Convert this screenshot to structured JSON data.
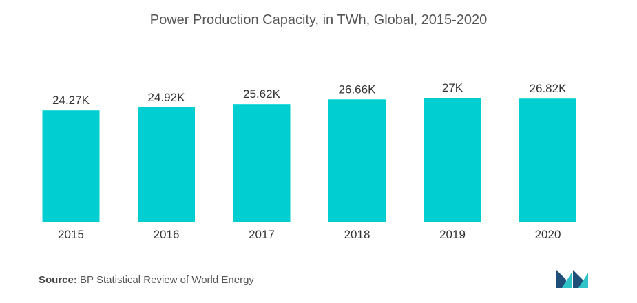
{
  "chart_data": {
    "type": "bar",
    "title": "Power Production Capacity, in TWh, Global, 2015-2020",
    "categories": [
      "2015",
      "2016",
      "2017",
      "2018",
      "2019",
      "2020"
    ],
    "values": [
      24.27,
      24.92,
      25.62,
      26.66,
      27,
      26.82
    ],
    "value_labels": [
      "24.27K",
      "24.92K",
      "25.62K",
      "26.66K",
      "27K",
      "26.82K"
    ],
    "xlabel": "",
    "ylabel": "",
    "ylim": [
      0,
      27
    ],
    "grid": false,
    "legend": "none",
    "bar_color": "#00ced1"
  },
  "footer": {
    "source_label": "Source:",
    "source_text": "BP Statistical Review of World Energy"
  },
  "logo": {
    "icon": "mordor-intelligence-logo-icon",
    "colors": [
      "#1f4e79",
      "#2ec4c7"
    ]
  }
}
